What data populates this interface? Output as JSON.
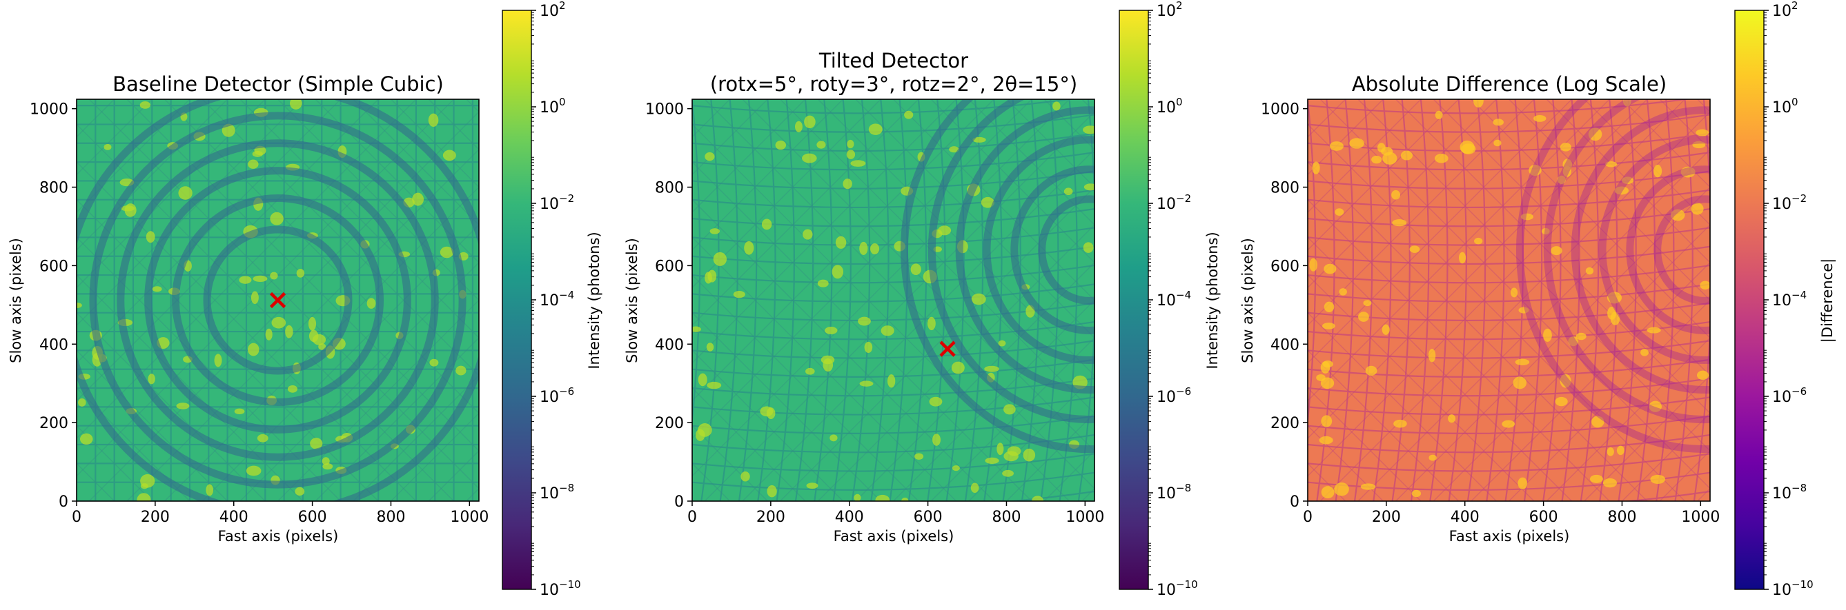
{
  "chart_data": [
    {
      "type": "heatmap",
      "title": "Baseline Detector (Simple Cubic)",
      "xlabel": "Fast axis (pixels)",
      "ylabel": "Slow axis (pixels)",
      "xlim": [
        0,
        1024
      ],
      "ylim": [
        0,
        1024
      ],
      "xticks": [
        0,
        200,
        400,
        600,
        800,
        1000
      ],
      "yticks": [
        0,
        200,
        400,
        600,
        800,
        1000
      ],
      "colormap": "viridis",
      "colorbar": {
        "label": "Intensity (photons)",
        "scale": "log",
        "range": [
          1e-10,
          100
        ],
        "tick_exponents": [
          -10,
          -8,
          -6,
          -4,
          -2,
          0,
          2
        ]
      },
      "marker": {
        "symbol": "x",
        "color": "#dd0000",
        "x": 512,
        "y": 512
      },
      "pattern": {
        "center": [
          512,
          512
        ],
        "rings": [
          180,
          260,
          330,
          400,
          470,
          540
        ],
        "grid_spacing": 12
      }
    },
    {
      "type": "heatmap",
      "title": "Tilted Detector",
      "subtitle": "(rotx=5°, roty=3°, rotz=2°, 2θ=15°)",
      "xlabel": "Fast axis (pixels)",
      "ylabel": "Slow axis (pixels)",
      "xlim": [
        0,
        1024
      ],
      "ylim": [
        0,
        1024
      ],
      "xticks": [
        0,
        200,
        400,
        600,
        800,
        1000
      ],
      "yticks": [
        0,
        200,
        400,
        600,
        800,
        1000
      ],
      "colormap": "viridis",
      "colorbar": {
        "label": "Intensity (photons)",
        "scale": "log",
        "range": [
          1e-10,
          100
        ],
        "tick_exponents": [
          -10,
          -8,
          -6,
          -4,
          -2,
          0,
          2
        ]
      },
      "marker": {
        "symbol": "x",
        "color": "#dd0000",
        "x": 650,
        "y": 388
      },
      "pattern": {
        "center": [
          1010,
          640
        ],
        "rings": [
          120,
          190,
          260,
          330,
          400,
          470
        ],
        "grid_spacing": 12
      }
    },
    {
      "type": "heatmap",
      "title": "Absolute Difference (Log Scale)",
      "xlabel": "Fast axis (pixels)",
      "ylabel": "Slow axis (pixels)",
      "xlim": [
        0,
        1024
      ],
      "ylim": [
        0,
        1024
      ],
      "xticks": [
        0,
        200,
        400,
        600,
        800,
        1000
      ],
      "yticks": [
        0,
        200,
        400,
        600,
        800,
        1000
      ],
      "colormap": "plasma",
      "colorbar": {
        "label": "|Difference|",
        "scale": "log",
        "range": [
          1e-10,
          100
        ],
        "tick_exponents": [
          -10,
          -8,
          -6,
          -4,
          -2,
          0,
          2
        ]
      },
      "pattern": {
        "center": [
          1010,
          640
        ],
        "rings": [
          120,
          190,
          260,
          330,
          400,
          470
        ],
        "grid_spacing": 12
      }
    }
  ],
  "colors": {
    "viridis": [
      "#440154",
      "#482878",
      "#3e4989",
      "#31688e",
      "#26828e",
      "#1f9e89",
      "#35b779",
      "#6ece58",
      "#b5de2b",
      "#fde725"
    ],
    "plasma": [
      "#0d0887",
      "#46039f",
      "#7201a8",
      "#9c179e",
      "#bd3786",
      "#d8576b",
      "#ed7953",
      "#fb9f3a",
      "#fdca26",
      "#f0f921"
    ],
    "marker": "#dd0000"
  }
}
